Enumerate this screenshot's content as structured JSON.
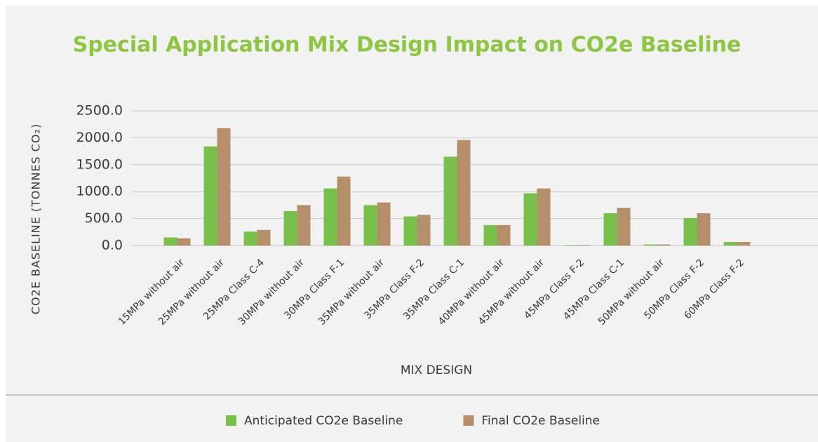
{
  "chart_data": {
    "type": "bar",
    "title": "Special Application Mix Design Impact on CO2e Baseline",
    "x_label": "MIX DESIGN",
    "y_label": "CO2E BASELINE (TONNES CO₂)",
    "categories": [
      "15MPa without air",
      "25MPa without air",
      "25MPa Class C-4",
      "30MPa without air",
      "30MPa Class F-1",
      "35MPa without air",
      "35MPa Class F-2",
      "35MPa Class C-1",
      "40MPa without air",
      "45MPa without air",
      "45MPa Class F-2",
      "45MPa Class C-1",
      "50MPa without air",
      "50MPa Class F-2",
      "60MPa Class F-2"
    ],
    "series": [
      {
        "name": "Anticipated CO2e Baseline",
        "color": "#77c04a",
        "values": [
          150,
          1840,
          260,
          640,
          1060,
          750,
          540,
          1650,
          380,
          970,
          10,
          600,
          20,
          510,
          65
        ]
      },
      {
        "name": "Final CO2e Baseline",
        "color": "#b58f6a",
        "values": [
          135,
          2180,
          290,
          750,
          1280,
          800,
          570,
          1960,
          380,
          1060,
          10,
          700,
          20,
          600,
          65
        ]
      }
    ],
    "ylim": [
      0,
      2500
    ],
    "yticks": [
      {
        "value": 0,
        "label": "0.0"
      },
      {
        "value": 500,
        "label": "500.0"
      },
      {
        "value": 1000,
        "label": "1000.0"
      },
      {
        "value": 1500,
        "label": "1500.0"
      },
      {
        "value": 2000,
        "label": "2000.0"
      },
      {
        "value": 2500,
        "label": "2500.0"
      }
    ],
    "grid": true,
    "legend": "bottom"
  }
}
